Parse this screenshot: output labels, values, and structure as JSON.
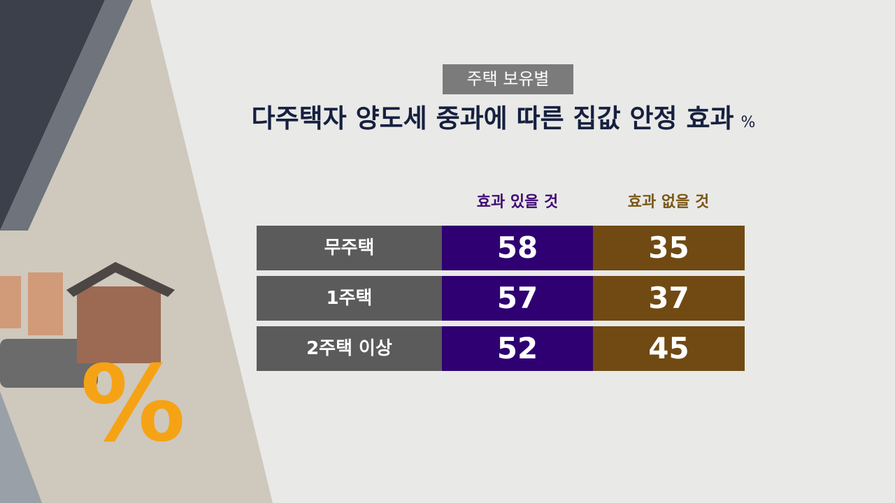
{
  "tag": "주택 보유별",
  "title": "다주택자 양도세 중과에 따른 집값 안정 효과",
  "unit": "%",
  "table": {
    "columns": [
      "효과 있을 것",
      "효과 없을 것"
    ],
    "rows": [
      [
        "무주택",
        58,
        35
      ],
      [
        "1주택",
        57,
        37
      ],
      [
        "2주택 이상",
        52,
        45
      ]
    ]
  }
}
